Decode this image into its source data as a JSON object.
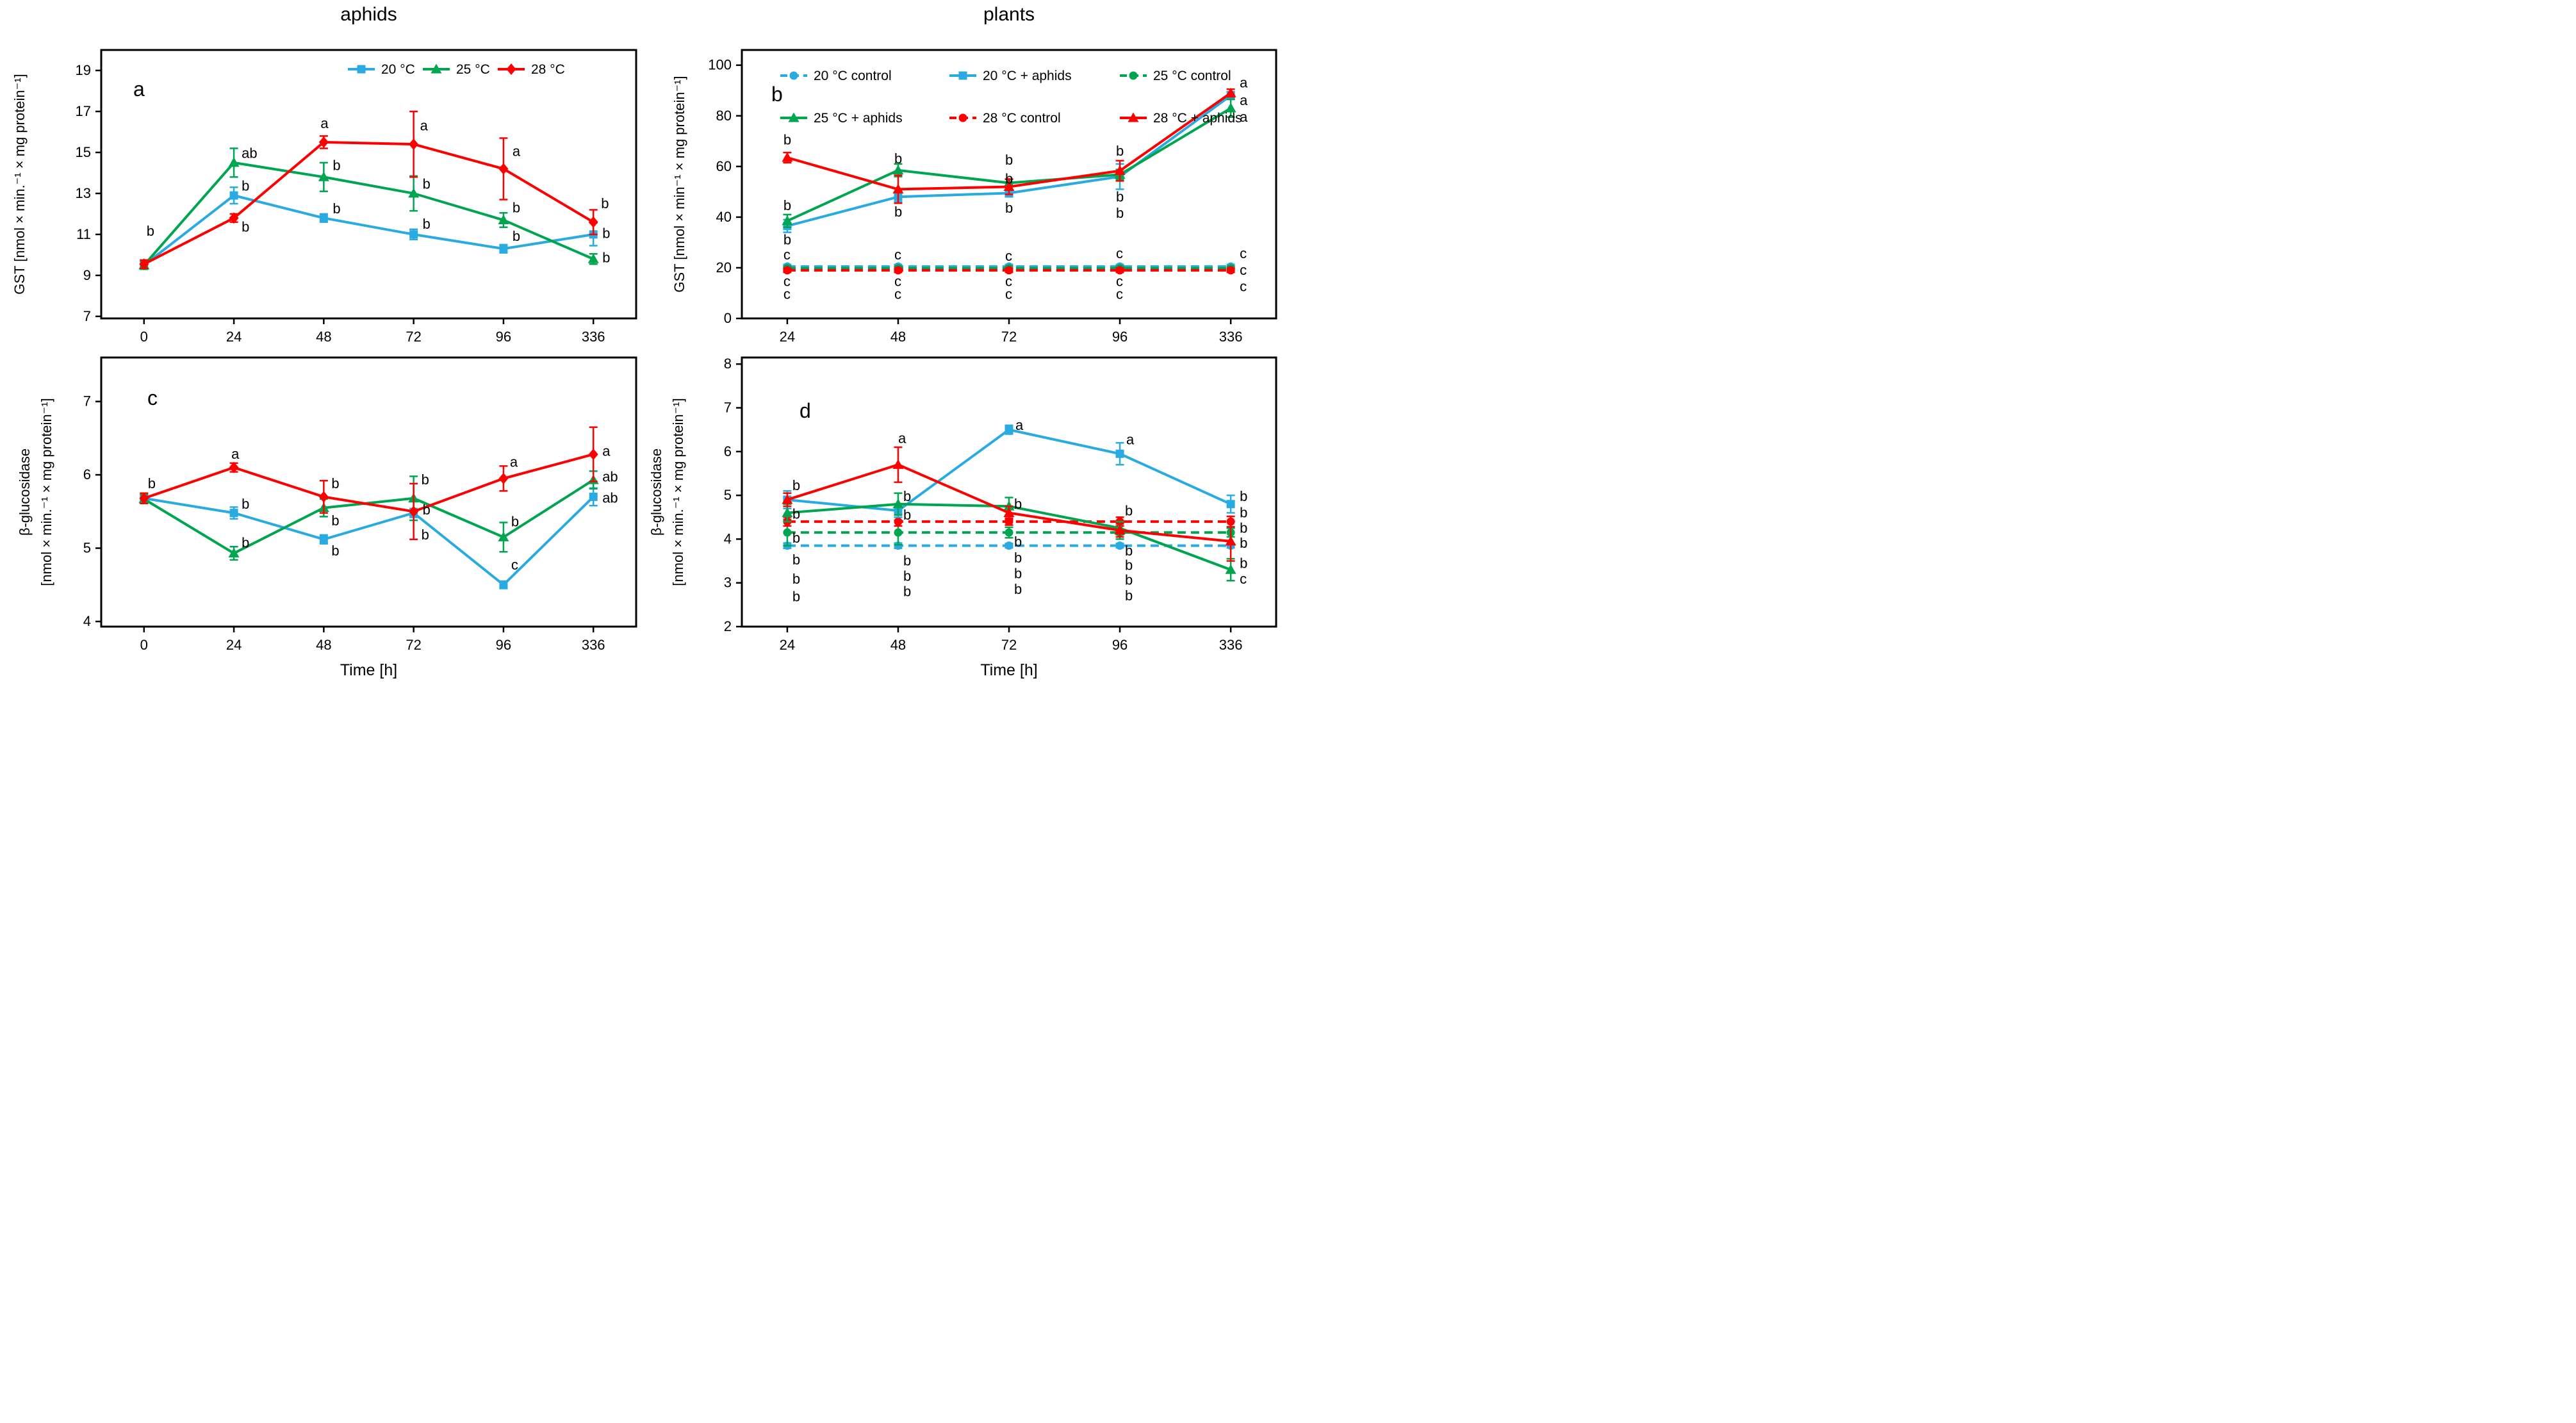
{
  "figure": {
    "column_titles": [
      "aphids",
      "plants"
    ],
    "xlabel": "Time [h]",
    "colors": {
      "blue": "#29ABE2",
      "green": "#00A550",
      "red": "#FE0000",
      "axis": "#000000"
    }
  },
  "chart_data": [
    {
      "id": "a",
      "type": "line",
      "panel_label": "a",
      "column_title": "aphids",
      "ylabel_lines": [
        "GST [nmol × min.⁻¹ × mg protein⁻¹]"
      ],
      "categories": [
        "0",
        "24",
        "48",
        "72",
        "96",
        "336"
      ],
      "ylim": [
        6.9,
        20.0
      ],
      "yticks": [
        7,
        9,
        11,
        13,
        15,
        17,
        19
      ],
      "legend_order": [
        0,
        1,
        2
      ],
      "series": [
        {
          "name": "20 °C",
          "color": "blue",
          "marker": "square",
          "dashed": false,
          "values": [
            9.5,
            12.9,
            11.8,
            11.0,
            10.3,
            11.0
          ],
          "errors": [
            0.15,
            0.4,
            0.2,
            0.25,
            0.2,
            0.55
          ]
        },
        {
          "name": "25 °C",
          "color": "green",
          "marker": "triangle",
          "dashed": false,
          "values": [
            9.5,
            14.5,
            13.8,
            13.0,
            11.7,
            9.8
          ],
          "errors": [
            0.2,
            0.7,
            0.7,
            0.85,
            0.35,
            0.25
          ]
        },
        {
          "name": "28 °C",
          "color": "red",
          "marker": "diamond",
          "dashed": false,
          "values": [
            9.55,
            11.8,
            15.5,
            15.4,
            14.2,
            11.6
          ],
          "errors": [
            0.2,
            0.2,
            0.3,
            1.6,
            1.5,
            0.6
          ]
        }
      ],
      "sig_labels": [
        {
          "xi": 0,
          "y": 11.15,
          "t": "b",
          "dx": 4
        },
        {
          "xi": 1,
          "y": 14.95,
          "t": "ab",
          "dx": 12
        },
        {
          "xi": 1,
          "y": 13.35,
          "t": "b",
          "dx": 12
        },
        {
          "xi": 1,
          "y": 11.35,
          "t": "b",
          "dx": 12
        },
        {
          "xi": 2,
          "y": 16.4,
          "t": "a",
          "dx": -5
        },
        {
          "xi": 2,
          "y": 14.35,
          "t": "b",
          "dx": 14
        },
        {
          "xi": 2,
          "y": 12.25,
          "t": "b",
          "dx": 14
        },
        {
          "xi": 3,
          "y": 16.3,
          "t": "a",
          "dx": 10
        },
        {
          "xi": 3,
          "y": 13.45,
          "t": "b",
          "dx": 14
        },
        {
          "xi": 3,
          "y": 11.5,
          "t": "b",
          "dx": 14
        },
        {
          "xi": 4,
          "y": 15.05,
          "t": "a",
          "dx": 14
        },
        {
          "xi": 4,
          "y": 12.3,
          "t": "b",
          "dx": 14
        },
        {
          "xi": 4,
          "y": 10.9,
          "t": "b",
          "dx": 14
        },
        {
          "xi": 5,
          "y": 12.5,
          "t": "b",
          "dx": 12
        },
        {
          "xi": 5,
          "y": 11.05,
          "t": "b",
          "dx": 14
        },
        {
          "xi": 5,
          "y": 9.85,
          "t": "b",
          "dx": 14
        }
      ]
    },
    {
      "id": "b",
      "type": "line",
      "panel_label": "b",
      "column_title": "plants",
      "ylabel_lines": [
        "GST [nmol × min⁻¹ × mg protein⁻¹]"
      ],
      "categories": [
        "24",
        "48",
        "72",
        "96",
        "336"
      ],
      "ylim": [
        0,
        106
      ],
      "yticks": [
        0,
        20,
        40,
        60,
        80,
        100
      ],
      "legend_order": [
        0,
        3,
        1,
        4,
        2,
        5
      ],
      "series": [
        {
          "name": "20 °C control",
          "color": "blue",
          "marker": "circle",
          "dashed": true,
          "values": [
            20.5,
            20.5,
            20.5,
            20.5,
            20.5
          ],
          "errors": [
            0.8,
            0.8,
            0.8,
            0.8,
            0.8
          ]
        },
        {
          "name": "25 °C control",
          "color": "green",
          "marker": "circle",
          "dashed": true,
          "values": [
            19.8,
            19.8,
            19.8,
            19.8,
            19.8
          ],
          "errors": [
            0.8,
            0.8,
            0.8,
            0.8,
            0.8
          ]
        },
        {
          "name": "28 °C control",
          "color": "red",
          "marker": "circle",
          "dashed": true,
          "values": [
            19.0,
            19.0,
            19.0,
            19.0,
            19.0
          ],
          "errors": [
            0.8,
            0.8,
            0.8,
            0.8,
            0.8
          ]
        },
        {
          "name": "20 °C + aphids",
          "color": "blue",
          "marker": "square",
          "dashed": false,
          "values": [
            36.5,
            48,
            49.5,
            56,
            88
          ],
          "errors": [
            2.5,
            2,
            1.5,
            5,
            1.5
          ]
        },
        {
          "name": "25 °C + aphids",
          "color": "green",
          "marker": "triangle",
          "dashed": false,
          "values": [
            38.5,
            58.5,
            53.5,
            56.8,
            83
          ],
          "errors": [
            2.5,
            2.5,
            1.5,
            2,
            3.5
          ]
        },
        {
          "name": "28 °C + aphids",
          "color": "red",
          "marker": "triangle",
          "dashed": false,
          "values": [
            63.5,
            51,
            52,
            58.3,
            89
          ],
          "errors": [
            2,
            5.5,
            3,
            4,
            1.5
          ]
        }
      ],
      "sig_labels": [
        {
          "xi": 0,
          "y": 70.5,
          "t": "b",
          "dx": -6
        },
        {
          "xi": 0,
          "y": 44.5,
          "t": "b",
          "dx": -6
        },
        {
          "xi": 0,
          "y": 31,
          "t": "b",
          "dx": -6
        },
        {
          "xi": 0,
          "y": 25,
          "t": "c",
          "dx": -6
        },
        {
          "xi": 0,
          "y": 14.5,
          "t": "c",
          "dx": -6
        },
        {
          "xi": 0,
          "y": 9.5,
          "t": "c",
          "dx": -6
        },
        {
          "xi": 1,
          "y": 63,
          "t": "b",
          "dx": -6
        },
        {
          "xi": 1,
          "y": 42,
          "t": "b",
          "dx": -6
        },
        {
          "xi": 1,
          "y": 25,
          "t": "c",
          "dx": -6
        },
        {
          "xi": 1,
          "y": 14.5,
          "t": "c",
          "dx": -6
        },
        {
          "xi": 1,
          "y": 9.5,
          "t": "c",
          "dx": -6
        },
        {
          "xi": 2,
          "y": 62.5,
          "t": "b",
          "dx": -6
        },
        {
          "xi": 2,
          "y": 55,
          "t": "b",
          "dx": -6
        },
        {
          "xi": 2,
          "y": 43.5,
          "t": "b",
          "dx": -6
        },
        {
          "xi": 2,
          "y": 24.5,
          "t": "c",
          "dx": -6
        },
        {
          "xi": 2,
          "y": 14.5,
          "t": "c",
          "dx": -6
        },
        {
          "xi": 2,
          "y": 9.5,
          "t": "c",
          "dx": -6
        },
        {
          "xi": 3,
          "y": 66,
          "t": "b",
          "dx": -6
        },
        {
          "xi": 3,
          "y": 48,
          "t": "b",
          "dx": -6
        },
        {
          "xi": 3,
          "y": 41.5,
          "t": "b",
          "dx": -6
        },
        {
          "xi": 3,
          "y": 25.5,
          "t": "c",
          "dx": -6
        },
        {
          "xi": 3,
          "y": 14.5,
          "t": "c",
          "dx": -6
        },
        {
          "xi": 3,
          "y": 9.5,
          "t": "c",
          "dx": -6
        },
        {
          "xi": 4,
          "y": 93,
          "t": "a",
          "dx": 14
        },
        {
          "xi": 4,
          "y": 86,
          "t": "a",
          "dx": 14
        },
        {
          "xi": 4,
          "y": 79.5,
          "t": "a",
          "dx": 14
        },
        {
          "xi": 4,
          "y": 25.5,
          "t": "c",
          "dx": 14
        },
        {
          "xi": 4,
          "y": 19,
          "t": "c",
          "dx": 14
        },
        {
          "xi": 4,
          "y": 12.5,
          "t": "c",
          "dx": 14
        }
      ]
    },
    {
      "id": "c",
      "type": "line",
      "panel_label": "c",
      "column_title": "aphids",
      "ylabel_lines": [
        "β-glucosidase",
        "[nmol × min.⁻¹ × mg protein⁻¹]"
      ],
      "categories": [
        "0",
        "24",
        "48",
        "72",
        "96",
        "336"
      ],
      "ylim": [
        3.93,
        7.6
      ],
      "yticks": [
        4,
        5,
        6,
        7
      ],
      "legend_order": [],
      "series": [
        {
          "name": "20 °C",
          "color": "blue",
          "marker": "square",
          "dashed": false,
          "values": [
            5.68,
            5.48,
            5.12,
            5.48,
            4.5,
            5.7
          ],
          "errors": [
            0.06,
            0.08,
            0.06,
            0.06,
            0.05,
            0.12
          ]
        },
        {
          "name": "25 °C",
          "color": "green",
          "marker": "triangle",
          "dashed": false,
          "values": [
            5.67,
            4.93,
            5.55,
            5.68,
            5.15,
            5.93
          ],
          "errors": [
            0.06,
            0.09,
            0.12,
            0.3,
            0.2,
            0.12
          ]
        },
        {
          "name": "28 °C",
          "color": "red",
          "marker": "diamond",
          "dashed": false,
          "values": [
            5.68,
            6.1,
            5.7,
            5.5,
            5.95,
            6.28
          ],
          "errors": [
            0.07,
            0.06,
            0.22,
            0.38,
            0.17,
            0.37
          ]
        }
      ],
      "sig_labels": [
        {
          "xi": 0,
          "y": 5.88,
          "t": "b",
          "dx": 6
        },
        {
          "xi": 1,
          "y": 6.28,
          "t": "a",
          "dx": -4
        },
        {
          "xi": 1,
          "y": 5.6,
          "t": "b",
          "dx": 12
        },
        {
          "xi": 1,
          "y": 5.07,
          "t": "b",
          "dx": 12
        },
        {
          "xi": 2,
          "y": 5.88,
          "t": "b",
          "dx": 12
        },
        {
          "xi": 2,
          "y": 5.37,
          "t": "b",
          "dx": 12
        },
        {
          "xi": 2,
          "y": 4.96,
          "t": "b",
          "dx": 12
        },
        {
          "xi": 3,
          "y": 5.93,
          "t": "b",
          "dx": 12
        },
        {
          "xi": 3,
          "y": 5.52,
          "t": "b",
          "dx": 14
        },
        {
          "xi": 3,
          "y": 5.18,
          "t": "b",
          "dx": 12
        },
        {
          "xi": 4,
          "y": 6.17,
          "t": "a",
          "dx": 10
        },
        {
          "xi": 4,
          "y": 5.36,
          "t": "b",
          "dx": 12
        },
        {
          "xi": 4,
          "y": 4.77,
          "t": "c",
          "dx": 12
        },
        {
          "xi": 5,
          "y": 6.32,
          "t": "a",
          "dx": 14
        },
        {
          "xi": 5,
          "y": 5.97,
          "t": "ab",
          "dx": 14
        },
        {
          "xi": 5,
          "y": 5.68,
          "t": "ab",
          "dx": 14
        }
      ]
    },
    {
      "id": "d",
      "type": "line",
      "panel_label": "d",
      "column_title": "plants",
      "ylabel_lines": [
        "β-glucosidase",
        "[nmol × min.⁻¹ × mg protein⁻¹]"
      ],
      "categories": [
        "24",
        "48",
        "72",
        "96",
        "336"
      ],
      "ylim": [
        2,
        8.15
      ],
      "yticks": [
        2,
        3,
        4,
        5,
        6,
        7,
        8
      ],
      "legend_order": [],
      "series": [
        {
          "name": "20 °C control",
          "color": "blue",
          "marker": "circle",
          "dashed": true,
          "values": [
            3.85,
            3.85,
            3.85,
            3.85,
            3.85
          ],
          "errors": [
            0.06,
            0.06,
            0.05,
            0.05,
            0.05
          ]
        },
        {
          "name": "25 °C control",
          "color": "green",
          "marker": "circle",
          "dashed": true,
          "values": [
            4.15,
            4.15,
            4.15,
            4.15,
            4.15
          ],
          "errors": [
            0.3,
            0.28,
            0.12,
            0.15,
            0.1
          ]
        },
        {
          "name": "28 °C control",
          "color": "red",
          "marker": "circle",
          "dashed": true,
          "values": [
            4.4,
            4.4,
            4.4,
            4.4,
            4.4
          ],
          "errors": [
            0.1,
            0.1,
            0.08,
            0.1,
            0.12
          ]
        },
        {
          "name": "20 °C + aphids",
          "color": "blue",
          "marker": "square",
          "dashed": false,
          "values": [
            4.9,
            4.65,
            6.5,
            5.95,
            4.8
          ],
          "errors": [
            0.2,
            0.15,
            0.1,
            0.25,
            0.2
          ]
        },
        {
          "name": "25 °C + aphids",
          "color": "green",
          "marker": "triangle",
          "dashed": false,
          "values": [
            4.6,
            4.8,
            4.75,
            4.25,
            3.3
          ],
          "errors": [
            0.2,
            0.25,
            0.2,
            0.15,
            0.25
          ]
        },
        {
          "name": "28 °C + aphids",
          "color": "red",
          "marker": "triangle",
          "dashed": false,
          "values": [
            4.9,
            5.7,
            4.6,
            4.2,
            3.95
          ],
          "errors": [
            0.15,
            0.4,
            0.15,
            0.15,
            0.45
          ]
        }
      ],
      "sig_labels": [
        {
          "xi": 0,
          "y": 5.22,
          "t": "b",
          "dx": 8
        },
        {
          "xi": 0,
          "y": 4.57,
          "t": "b",
          "dx": 8
        },
        {
          "xi": 0,
          "y": 4.02,
          "t": "b",
          "dx": 8
        },
        {
          "xi": 0,
          "y": 3.52,
          "t": "b",
          "dx": 8
        },
        {
          "xi": 0,
          "y": 3.08,
          "t": "b",
          "dx": 8
        },
        {
          "xi": 0,
          "y": 2.68,
          "t": "b",
          "dx": 8
        },
        {
          "xi": 1,
          "y": 6.3,
          "t": "a",
          "dx": 0
        },
        {
          "xi": 1,
          "y": 4.97,
          "t": "b",
          "dx": 8
        },
        {
          "xi": 1,
          "y": 4.55,
          "t": "b",
          "dx": 8
        },
        {
          "xi": 1,
          "y": 3.5,
          "t": "b",
          "dx": 8
        },
        {
          "xi": 1,
          "y": 3.15,
          "t": "b",
          "dx": 8
        },
        {
          "xi": 1,
          "y": 2.8,
          "t": "b",
          "dx": 8
        },
        {
          "xi": 2,
          "y": 6.6,
          "t": "a",
          "dx": 10
        },
        {
          "xi": 2,
          "y": 4.8,
          "t": "b",
          "dx": 8
        },
        {
          "xi": 2,
          "y": 3.93,
          "t": "b",
          "dx": 8
        },
        {
          "xi": 2,
          "y": 3.57,
          "t": "b",
          "dx": 8
        },
        {
          "xi": 2,
          "y": 3.21,
          "t": "b",
          "dx": 8
        },
        {
          "xi": 2,
          "y": 2.85,
          "t": "b",
          "dx": 8
        },
        {
          "xi": 3,
          "y": 6.27,
          "t": "a",
          "dx": 10
        },
        {
          "xi": 3,
          "y": 4.64,
          "t": "b",
          "dx": 8
        },
        {
          "xi": 3,
          "y": 3.73,
          "t": "b",
          "dx": 8
        },
        {
          "xi": 3,
          "y": 3.4,
          "t": "b",
          "dx": 8
        },
        {
          "xi": 3,
          "y": 3.06,
          "t": "b",
          "dx": 8
        },
        {
          "xi": 3,
          "y": 2.7,
          "t": "b",
          "dx": 8
        },
        {
          "xi": 4,
          "y": 4.97,
          "t": "b",
          "dx": 14
        },
        {
          "xi": 4,
          "y": 4.6,
          "t": "b",
          "dx": 14
        },
        {
          "xi": 4,
          "y": 4.25,
          "t": "b",
          "dx": 14
        },
        {
          "xi": 4,
          "y": 3.9,
          "t": "b",
          "dx": 14
        },
        {
          "xi": 4,
          "y": 3.44,
          "t": "b",
          "dx": 14
        },
        {
          "xi": 4,
          "y": 3.08,
          "t": "c",
          "dx": 14
        }
      ]
    }
  ]
}
